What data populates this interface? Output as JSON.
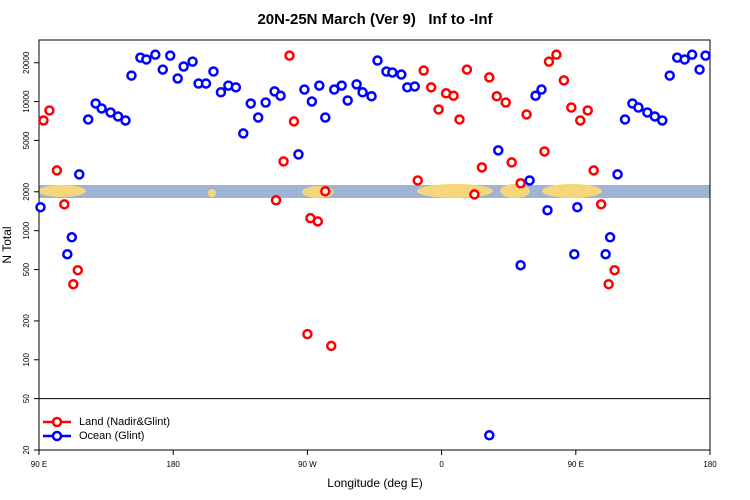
{
  "chart_data": {
    "type": "scatter",
    "title": "20N-25N March (Ver 9)   Inf to -Inf",
    "x_label": "Longitude (deg E)",
    "y_label": "N Total",
    "y_scale": "log",
    "legend": "lower left",
    "xlim": [
      90,
      540
    ],
    "xticks": [
      {
        "value": 90,
        "label": "90 E"
      },
      180,
      {
        "value": 270,
        "label": "90 W"
      },
      {
        "value": 360,
        "label": "0"
      },
      {
        "value": 450,
        "label": "90 E"
      },
      {
        "value": 540,
        "label": "180"
      }
    ],
    "ylim": [
      20,
      30000
    ],
    "yticks": [
      20,
      50,
      100,
      200,
      500,
      1000,
      2000,
      5000,
      10000,
      20000
    ],
    "series": [
      {
        "name": "Land (Nadir&Glint)",
        "color": "#ff0000",
        "x": [
          93,
          97,
          102,
          107,
          113,
          116,
          249,
          254,
          258,
          261,
          270,
          272,
          277,
          282,
          286,
          344,
          348,
          353,
          358,
          363,
          368,
          372,
          377,
          382,
          387,
          392,
          397,
          403,
          407,
          413,
          417,
          429,
          432,
          437,
          442,
          447,
          453,
          458,
          462,
          467,
          472,
          476
        ],
        "values": [
          7140,
          8540,
          2930,
          1600,
          385,
          494,
          1720,
          3440,
          22700,
          7020,
          158,
          1250,
          1180,
          2020,
          128,
          2450,
          17400,
          12900,
          8690,
          11600,
          11100,
          7270,
          17700,
          1910,
          3090,
          15400,
          11000,
          9840,
          3380,
          2330,
          7950,
          4110,
          20400,
          23100,
          14600,
          9000,
          7140,
          8540,
          2930,
          1600,
          385,
          494
        ]
      },
      {
        "name": "Ocean (Glint)",
        "color": "#0000ff",
        "x": [
          91,
          109,
          112,
          117,
          123,
          128,
          132,
          138,
          143,
          148,
          152,
          158,
          162,
          168,
          173,
          178,
          183,
          187,
          193,
          197,
          202,
          207,
          212,
          217,
          222,
          227,
          232,
          237,
          242,
          248,
          252,
          264,
          268,
          273,
          278,
          282,
          288,
          293,
          297,
          303,
          307,
          313,
          317,
          323,
          327,
          333,
          337,
          342,
          392,
          398,
          413,
          419,
          423,
          427,
          431,
          449,
          451,
          470,
          473,
          478,
          483,
          488,
          492,
          498,
          503,
          508,
          513,
          518,
          523,
          528,
          533,
          537
        ],
        "values": [
          1520,
          657,
          889,
          2730,
          7270,
          9670,
          8850,
          8240,
          7670,
          7140,
          15900,
          21900,
          21200,
          23100,
          17700,
          22700,
          15100,
          18700,
          20400,
          13800,
          13800,
          17100,
          11800,
          13300,
          12900,
          5670,
          9670,
          7530,
          9840,
          12000,
          11100,
          3900,
          12400,
          10020,
          13300,
          7530,
          12400,
          13300,
          10200,
          13600,
          11800,
          11000,
          20800,
          17100,
          16800,
          16200,
          12900,
          13100,
          26,
          4190,
          540,
          2450,
          11100,
          12400,
          1440,
          657,
          1520,
          657,
          889,
          2730,
          7270,
          9670,
          9000,
          8240,
          7670,
          7140,
          15900,
          21900,
          21200,
          23100,
          17700,
          22700
        ]
      }
    ]
  }
}
